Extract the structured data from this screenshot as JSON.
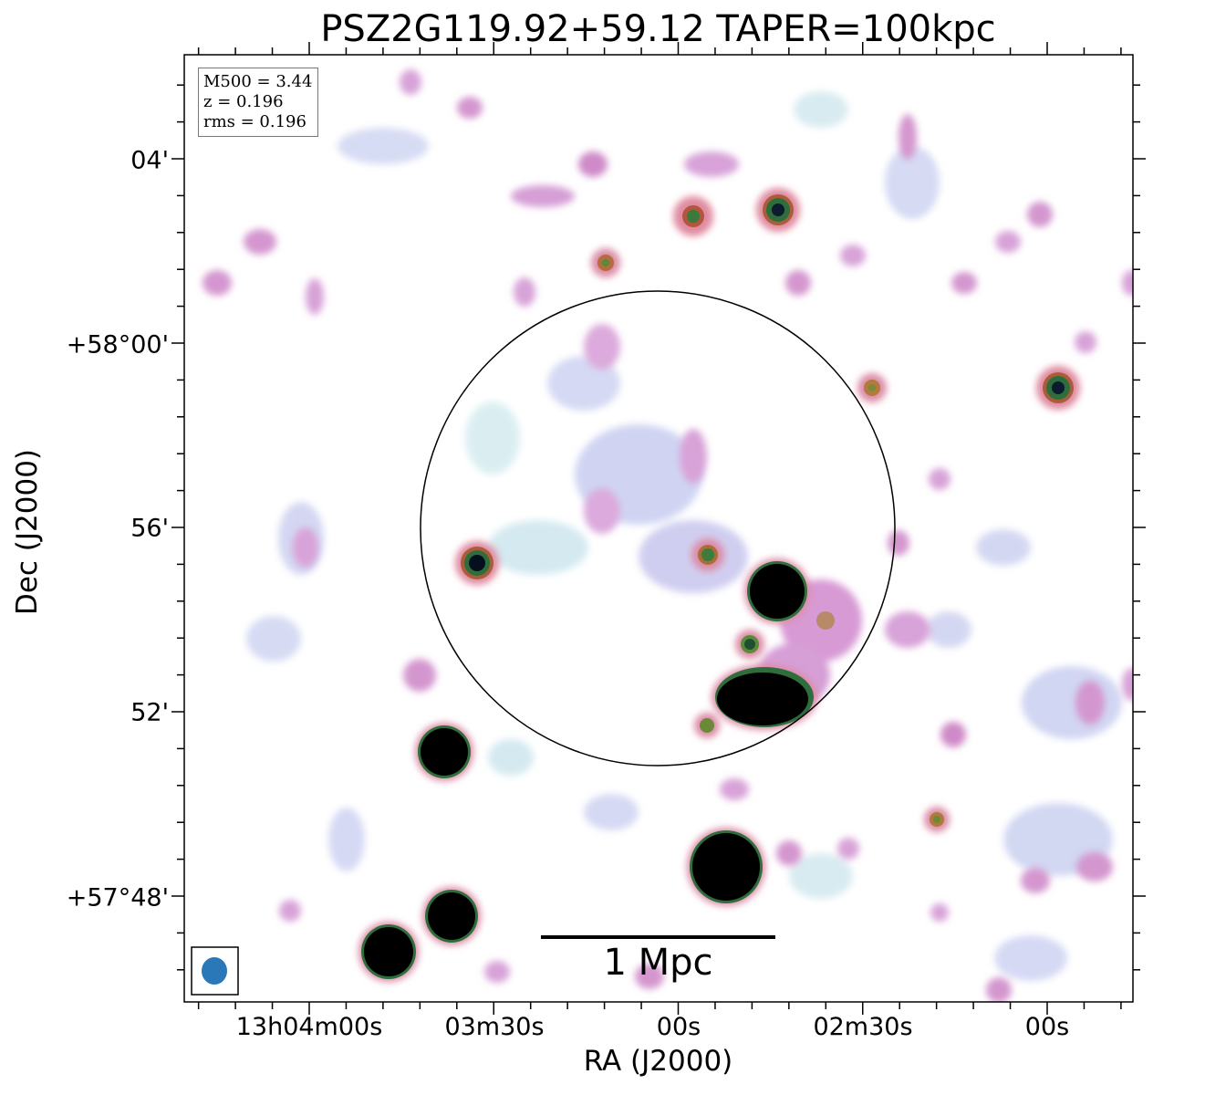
{
  "title": "PSZ2G119.92+59.12 TAPER=100kpc",
  "xlabel": "RA (J2000)",
  "ylabel": "Dec (J2000)",
  "x_ticks": [
    "13h04m00s",
    "03m30s",
    "00s",
    "02m30s",
    "00s"
  ],
  "y_ticks": [
    "04'",
    "+58°00'",
    "56'",
    "52'",
    "+57°48'"
  ],
  "info": {
    "m500": "M500 = 3.44",
    "z": "z = 0.196",
    "rms": "rms = 0.196"
  },
  "scalebar": "1 Mpc",
  "colors": {
    "beam": "#2a78b8",
    "frame": "#000000"
  }
}
